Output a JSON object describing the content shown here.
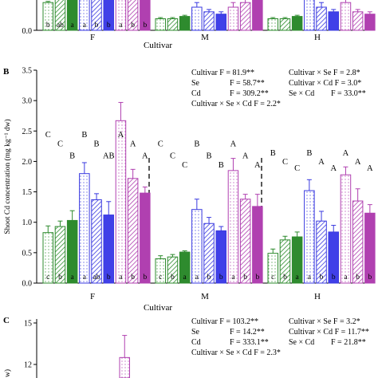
{
  "colors": {
    "c1_edge": "#2e8b2e",
    "c1_fill": "#2e8b2e",
    "c2_edge": "#3a3ae0",
    "c2_fill": "#4040e8",
    "c3_edge": "#b040b0",
    "c3_fill": "#b040b0"
  },
  "chart_data": [
    {
      "type": "bar",
      "panel_label": "",
      "xlabel": "Cultivar",
      "ylabel": "",
      "groups": [
        "F",
        "M",
        "H"
      ],
      "letters": [
        [
          "b",
          "ab",
          "a",
          "a",
          "b",
          "b",
          "a",
          "b",
          "b"
        ]
      ],
      "bars_values": [
        [
          0.12,
          0.14,
          0.15,
          0.18,
          0.16,
          0.14,
          0.18,
          0.18,
          0.16
        ],
        [
          0.05,
          0.05,
          0.06,
          0.1,
          0.08,
          0.07,
          0.1,
          0.12,
          0.13
        ],
        [
          0.05,
          0.05,
          0.06,
          0.16,
          0.1,
          0.08,
          0.12,
          0.08,
          0.07
        ]
      ],
      "bars_errors": [
        [
          0.005,
          0.01,
          0.01,
          0.02,
          0.02,
          0.01,
          0.03,
          0.03,
          0.02
        ],
        [
          0.005,
          0.005,
          0.005,
          0.02,
          0.01,
          0.01,
          0.02,
          0.03,
          0.02
        ],
        [
          0.005,
          0.005,
          0.005,
          0.03,
          0.02,
          0.01,
          0.02,
          0.01,
          0.01
        ]
      ],
      "y_ticks": [
        "0.0"
      ],
      "ylim": [
        0,
        0.2
      ]
    },
    {
      "type": "bar",
      "panel_label": "B",
      "xlabel": "Cultivar",
      "ylabel": "Shoot Cd concentration (mg kg⁻¹ dw)",
      "ylim": [
        0,
        3.5
      ],
      "y_ticks": [
        "0.0",
        "0.5",
        "1.0",
        "1.5",
        "2.0",
        "2.5",
        "3.0",
        "3.5"
      ],
      "groups": [
        "F",
        "M",
        "H"
      ],
      "bars_values": [
        [
          0.83,
          0.93,
          1.03,
          1.8,
          1.37,
          1.12,
          2.67,
          1.72,
          1.48
        ],
        [
          0.4,
          0.43,
          0.51,
          1.21,
          0.98,
          0.86,
          1.85,
          1.38,
          1.26
        ],
        [
          0.49,
          0.71,
          0.76,
          1.52,
          1.02,
          0.84,
          1.78,
          1.35,
          1.15
        ]
      ],
      "bars_errors": [
        [
          0.11,
          0.09,
          0.16,
          0.18,
          0.1,
          0.22,
          0.3,
          0.15,
          0.1
        ],
        [
          0.05,
          0.04,
          0.02,
          0.17,
          0.1,
          0.07,
          0.2,
          0.08,
          0.2
        ],
        [
          0.07,
          0.06,
          0.08,
          0.18,
          0.16,
          0.11,
          0.13,
          0.2,
          0.14
        ]
      ],
      "letters_bottom": [
        [
          "c",
          "b",
          "a",
          "a",
          "ab",
          "b",
          "a",
          "b",
          "b"
        ],
        [
          "c",
          "b",
          "a",
          "a",
          "b",
          "b",
          "a",
          "b",
          "b"
        ],
        [
          "c",
          "b",
          "a",
          "a",
          "b",
          "b",
          "a",
          "b",
          "b"
        ]
      ],
      "upper_letters": [
        [
          {
            "bar": 0,
            "level": 2.4,
            "text": "C"
          },
          {
            "bar": 1,
            "level": 2.25,
            "text": "C"
          },
          {
            "bar": 2,
            "level": 2.05,
            "text": "B"
          },
          {
            "bar": 3,
            "level": 2.4,
            "text": "B"
          },
          {
            "bar": 4,
            "level": 2.25,
            "text": "B"
          },
          {
            "bar": 5,
            "level": 2.05,
            "text": "AB"
          },
          {
            "bar": 6,
            "level": 2.4,
            "text": "A"
          },
          {
            "bar": 7,
            "level": 2.25,
            "text": "A"
          },
          {
            "bar": 8,
            "level": 2.05,
            "text": "A"
          }
        ],
        [
          {
            "bar": 0,
            "level": 2.25,
            "text": "C"
          },
          {
            "bar": 1,
            "level": 2.05,
            "text": "C"
          },
          {
            "bar": 2,
            "level": 1.9,
            "text": "C"
          },
          {
            "bar": 3,
            "level": 2.25,
            "text": "B"
          },
          {
            "bar": 4,
            "level": 2.05,
            "text": "B"
          },
          {
            "bar": 5,
            "level": 1.9,
            "text": "B"
          },
          {
            "bar": 6,
            "level": 2.25,
            "text": "A"
          },
          {
            "bar": 7,
            "level": 2.05,
            "text": "A"
          },
          {
            "bar": 8,
            "level": 1.9,
            "text": "A"
          }
        ],
        [
          {
            "bar": 0,
            "level": 2.1,
            "text": "B"
          },
          {
            "bar": 1,
            "level": 1.95,
            "text": "C"
          },
          {
            "bar": 2,
            "level": 1.85,
            "text": "C"
          },
          {
            "bar": 3,
            "level": 2.1,
            "text": "B"
          },
          {
            "bar": 4,
            "level": 1.95,
            "text": "A"
          },
          {
            "bar": 5,
            "level": 1.85,
            "text": "A"
          },
          {
            "bar": 6,
            "level": 2.1,
            "text": "A"
          },
          {
            "bar": 7,
            "level": 1.95,
            "text": "A"
          },
          {
            "bar": 8,
            "level": 1.85,
            "text": "A"
          }
        ]
      ],
      "stats": [
        [
          "Cultivar F = 81.9**",
          "Cultivar × Se",
          "F = 2.8*"
        ],
        [
          "Se F = 58.7**",
          "Cultivar × Cd",
          "F = 3.0*"
        ],
        [
          "Cd F = 309.2**",
          "Se × Cd",
          "F = 33.0**"
        ],
        [
          "Cultivar × Se × Cd F = 2.2*"
        ]
      ]
    },
    {
      "type": "bar",
      "panel_label": "C",
      "ylabel": "",
      "y_ticks": [
        "15",
        "12"
      ],
      "ylim": [
        0,
        15
      ],
      "visible_values": [
        {
          "group": 1,
          "bar": 0,
          "value": 12.5,
          "error": 1.6
        }
      ],
      "stats": [
        [
          "Cultivar F = 103.2**",
          "Cultivar × Se",
          "F = 3.2*"
        ],
        [
          "Se F = 14.2**",
          "Cultivar × Cd",
          "F = 11.7**"
        ],
        [
          "Cd F = 333.1**",
          "Se × Cd",
          "F = 21.8**"
        ],
        [
          "Cultivar × Se × Cd F = 2.3*"
        ]
      ]
    }
  ],
  "figure_text": {
    "a_xlabel": "Cultivar",
    "a_groups": [
      "F",
      "M",
      "H"
    ],
    "b_label": "B",
    "b_xlabel": "Cultivar",
    "c_label": "C",
    "b_stats": {
      "l1": "Cultivar F = 81.9**",
      "l1r": "Cultivar × Se   F = 2.8*",
      "l2a": "Se",
      "l2b": "F = 58.7**",
      "l2r": "Cultivar × Cd   F = 3.0*",
      "l3a": "Cd",
      "l3b": "F = 309.2**",
      "l3r": "Se × Cd",
      "l3rb": "F = 33.0**",
      "l4": "Cultivar × Se × Cd   F = 2.2*"
    },
    "c_stats": {
      "l1": "Cultivar F = 103.2**",
      "l1r": "Cultivar × Se   F = 3.2*",
      "l2a": "Se",
      "l2b": "F = 14.2**",
      "l2r": "Cultivar × Cd   F = 11.7**",
      "l3a": "Cd",
      "l3b": "F = 333.1**",
      "l3r": "Se × Cd",
      "l3rb": "F = 21.8**",
      "l4": "Cultivar × Se × Cd   F = 2.3*"
    }
  }
}
